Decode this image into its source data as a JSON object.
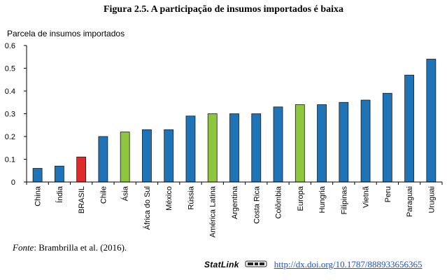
{
  "figure": {
    "title": "Figura 2.5. A participação de insumos importados é baixa"
  },
  "chart_data": {
    "type": "bar",
    "title": "Figura 2.5. A participação de insumos importados é baixa",
    "ylabel": "Parcela de insumos importados",
    "xlabel": "",
    "ylim": [
      0,
      0.6
    ],
    "yticks": [
      0,
      0.1,
      0.2,
      0.3,
      0.4,
      0.5,
      0.6
    ],
    "ytick_labels": [
      "0",
      "0.1",
      "0.2",
      "0.3",
      "0.4",
      "0.5",
      "0.6"
    ],
    "grid": false,
    "categories": [
      "China",
      "Índia",
      "BRASIL",
      "Chile",
      "Ásia",
      "África do Sul",
      "México",
      "Rússia",
      "América Latina",
      "Argentina",
      "Costa Rica",
      "Colômbia",
      "Europa",
      "Hungria",
      "Filipinas",
      "Vietnã",
      "Peru",
      "Paraguai",
      "Uruguai"
    ],
    "values": [
      0.06,
      0.07,
      0.11,
      0.2,
      0.22,
      0.23,
      0.23,
      0.29,
      0.3,
      0.3,
      0.3,
      0.33,
      0.34,
      0.34,
      0.35,
      0.36,
      0.39,
      0.47,
      0.54
    ],
    "bar_groups": [
      "country",
      "country",
      "highlight",
      "country",
      "region",
      "country",
      "country",
      "country",
      "region",
      "country",
      "country",
      "country",
      "region",
      "country",
      "country",
      "country",
      "country",
      "country",
      "country"
    ],
    "colors": {
      "country": "#1f73b7",
      "region": "#8dc63f",
      "highlight": "#e02b2b",
      "bar_edge": "#1a1a1a",
      "axis": "#000000"
    }
  },
  "footer": {
    "source_label": "Fonte",
    "source_text": ": Brambrilla et al. (2016).",
    "statlink_text": "StatLink",
    "statlink_icon": "statlink-logo-icon",
    "statlink_url": "http://dx.doi.org/10.1787/888933656365"
  }
}
